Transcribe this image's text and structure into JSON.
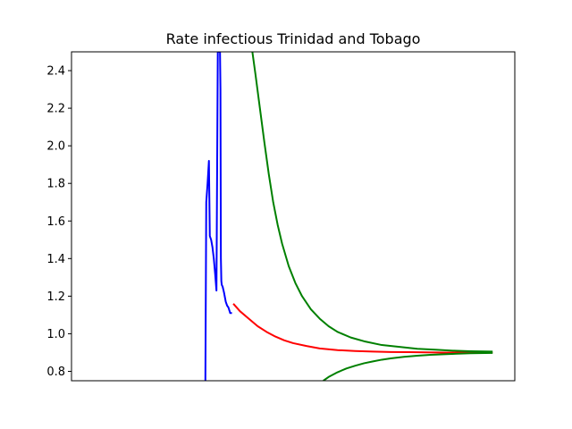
{
  "chart_data": {
    "type": "line",
    "title": "Rate infectious Trinidad and Tobago",
    "xlabel": "",
    "ylabel": "",
    "xlim": [
      0,
      100
    ],
    "ylim": [
      0.75,
      2.5
    ],
    "yticks": [
      0.8,
      1.0,
      1.2,
      1.4,
      1.6,
      1.8,
      2.0,
      2.2,
      2.4
    ],
    "ytick_labels": [
      "0.8",
      "1.0",
      "1.2",
      "1.4",
      "1.6",
      "1.8",
      "2.0",
      "2.2",
      "2.4"
    ],
    "show_xticks": false,
    "grid": false,
    "series": [
      {
        "color": "#0000ff",
        "x": [
          30.2,
          30.4,
          30.7,
          31.0,
          31.2,
          31.5,
          31.8,
          32.1,
          32.4,
          32.7,
          33.0,
          33.3,
          33.4,
          33.5,
          33.6,
          33.7,
          33.8,
          33.9,
          34.1,
          34.4,
          34.8,
          35.1,
          35.4,
          35.8,
          36.2
        ],
        "y": [
          0.75,
          1.7,
          1.8,
          1.92,
          1.52,
          1.5,
          1.46,
          1.4,
          1.32,
          1.23,
          2.5,
          2.5,
          2.5,
          2.5,
          2.3,
          1.4,
          1.28,
          1.26,
          1.25,
          1.22,
          1.17,
          1.15,
          1.14,
          1.11,
          1.11
        ]
      },
      {
        "color": "#ff0000",
        "x": [
          36.5,
          38,
          40,
          42,
          44,
          46,
          48,
          50,
          53,
          56,
          60,
          64,
          68,
          72,
          76,
          80,
          84,
          88,
          92,
          95
        ],
        "y": [
          1.16,
          1.12,
          1.08,
          1.04,
          1.01,
          0.985,
          0.965,
          0.95,
          0.935,
          0.922,
          0.913,
          0.908,
          0.905,
          0.903,
          0.902,
          0.901,
          0.9,
          0.9,
          0.9,
          0.9
        ]
      },
      {
        "color": "#008000",
        "x": [
          40.8,
          41.5,
          42.5,
          43.5,
          44.5,
          45.5,
          46.5,
          47.5,
          49,
          50.5,
          52,
          54,
          56,
          58,
          60,
          63,
          66,
          70,
          74,
          78,
          82,
          86,
          90,
          95
        ],
        "y": [
          2.5,
          2.38,
          2.2,
          2.02,
          1.85,
          1.7,
          1.58,
          1.48,
          1.36,
          1.27,
          1.2,
          1.13,
          1.08,
          1.04,
          1.01,
          0.98,
          0.96,
          0.94,
          0.93,
          0.92,
          0.915,
          0.91,
          0.907,
          0.905
        ]
      },
      {
        "color": "#008000",
        "x": [
          56.8,
          58,
          60,
          62,
          64,
          66,
          68,
          70,
          72,
          75,
          78,
          81,
          84,
          87,
          90,
          95
        ],
        "y": [
          0.75,
          0.77,
          0.795,
          0.815,
          0.83,
          0.843,
          0.853,
          0.862,
          0.869,
          0.877,
          0.883,
          0.888,
          0.891,
          0.894,
          0.896,
          0.898
        ]
      }
    ]
  }
}
